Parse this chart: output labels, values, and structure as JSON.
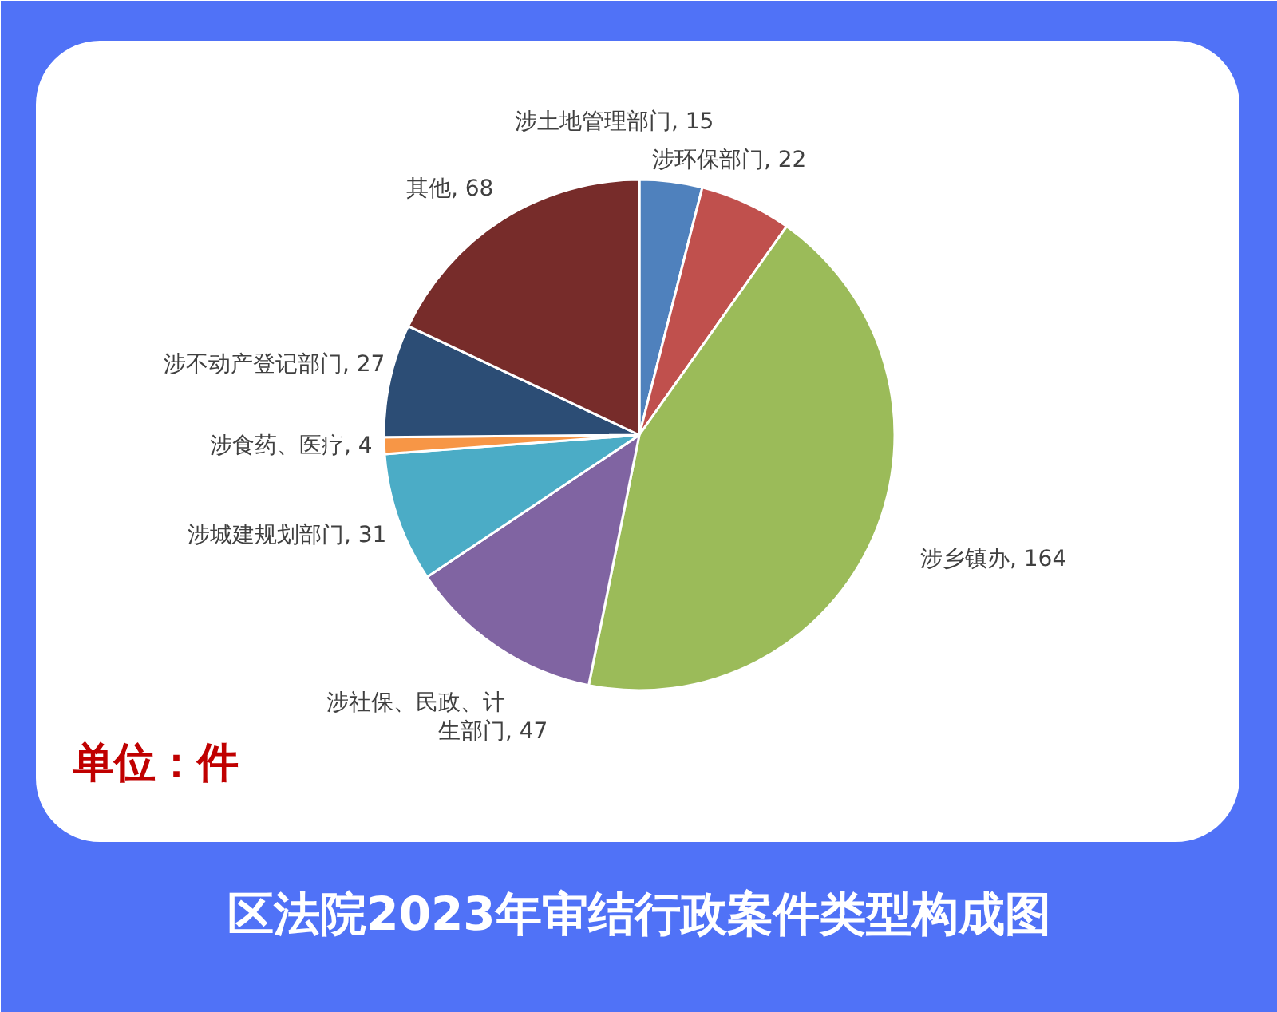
{
  "chart_data": {
    "type": "pie",
    "title": "区法院2023年审结行政案件类型构成图",
    "annotations": [
      "单位：件"
    ],
    "categories": [
      "涉土地管理部门",
      "涉环保部门",
      "涉乡镇办",
      "涉社保、民政、计生部门",
      "涉城建规划部门",
      "涉食药、医疗",
      "涉不动产登记部门",
      "其他"
    ],
    "values": [
      15,
      22,
      164,
      47,
      31,
      4,
      27,
      68
    ],
    "value_labels": [
      ", 15",
      ", 22",
      ", 164",
      ", 47",
      ", 31",
      ", 4",
      ", 27",
      ", 68"
    ],
    "colors": [
      "#4f81bd",
      "#c0504d",
      "#9bbb59",
      "#8064a2",
      "#4bacc6",
      "#f79646",
      "#2c4d75",
      "#772c2a"
    ]
  }
}
